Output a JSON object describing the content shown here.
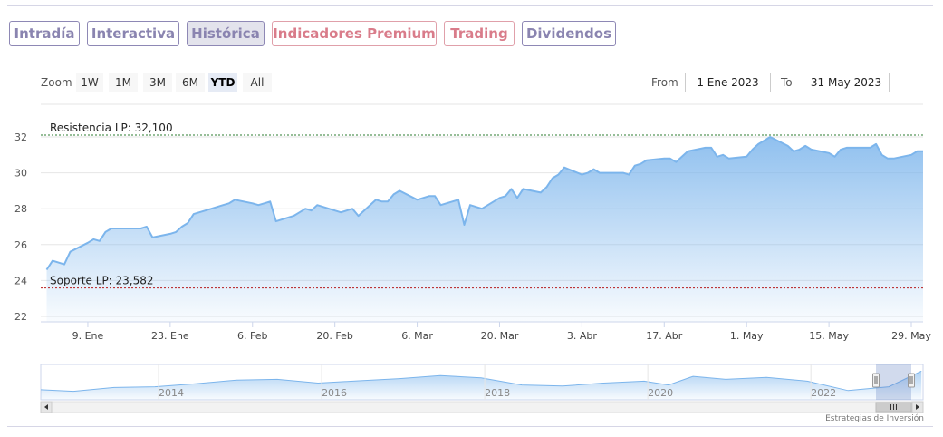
{
  "tabs": [
    {
      "label": "Intradía",
      "style": "purple",
      "active": false
    },
    {
      "label": "Interactiva",
      "style": "purple",
      "active": false
    },
    {
      "label": "Histórica",
      "style": "purple",
      "active": true
    },
    {
      "label": "Indicadores Premium",
      "style": "red",
      "active": false
    },
    {
      "label": "Trading",
      "style": "red",
      "active": false
    },
    {
      "label": "Dividendos",
      "style": "purple",
      "active": false
    }
  ],
  "zoom": {
    "label": "Zoom",
    "buttons": [
      "1W",
      "1M",
      "3M",
      "6M",
      "YTD",
      "All"
    ],
    "selected": "YTD"
  },
  "range": {
    "from_label": "From",
    "from_value": "1 Ene 2023",
    "to_label": "To",
    "to_value": "31 May 2023"
  },
  "credit": "Estrategias de Inversión",
  "colors": {
    "line": "#7cb5ec",
    "resistance": "#2e7d32",
    "support": "#b71c1c",
    "tab_purple": "#8a84b0",
    "tab_red": "#d97c8a"
  },
  "chart_data": {
    "type": "area",
    "title": "",
    "xlabel": "",
    "ylabel": "",
    "ylim": [
      22,
      32
    ],
    "yticks": [
      22,
      24,
      26,
      28,
      30,
      32
    ],
    "xticks": [
      {
        "date": "2023-01-09",
        "label": "9. Ene"
      },
      {
        "date": "2023-01-23",
        "label": "23. Ene"
      },
      {
        "date": "2023-02-06",
        "label": "6. Feb"
      },
      {
        "date": "2023-02-20",
        "label": "20. Feb"
      },
      {
        "date": "2023-03-06",
        "label": "6. Mar"
      },
      {
        "date": "2023-03-20",
        "label": "20. Mar"
      },
      {
        "date": "2023-04-03",
        "label": "3. Abr"
      },
      {
        "date": "2023-04-17",
        "label": "17. Abr"
      },
      {
        "date": "2023-05-01",
        "label": "1. May"
      },
      {
        "date": "2023-05-15",
        "label": "15. May"
      },
      {
        "date": "2023-05-29",
        "label": "29. May"
      }
    ],
    "grid": true,
    "series": [
      {
        "points": [
          [
            "2023-01-02",
            24.6
          ],
          [
            "2023-01-03",
            25.1
          ],
          [
            "2023-01-04",
            25.0
          ],
          [
            "2023-01-05",
            24.9
          ],
          [
            "2023-01-06",
            25.6
          ],
          [
            "2023-01-09",
            26.1
          ],
          [
            "2023-01-10",
            26.3
          ],
          [
            "2023-01-11",
            26.2
          ],
          [
            "2023-01-12",
            26.7
          ],
          [
            "2023-01-13",
            26.9
          ],
          [
            "2023-01-16",
            26.9
          ],
          [
            "2023-01-17",
            26.9
          ],
          [
            "2023-01-18",
            26.9
          ],
          [
            "2023-01-19",
            27.0
          ],
          [
            "2023-01-20",
            26.4
          ],
          [
            "2023-01-23",
            26.6
          ],
          [
            "2023-01-24",
            26.7
          ],
          [
            "2023-01-25",
            27.0
          ],
          [
            "2023-01-26",
            27.2
          ],
          [
            "2023-01-27",
            27.7
          ],
          [
            "2023-01-30",
            28.0
          ],
          [
            "2023-01-31",
            28.1
          ],
          [
            "2023-02-01",
            28.2
          ],
          [
            "2023-02-02",
            28.3
          ],
          [
            "2023-02-03",
            28.5
          ],
          [
            "2023-02-06",
            28.3
          ],
          [
            "2023-02-07",
            28.2
          ],
          [
            "2023-02-08",
            28.3
          ],
          [
            "2023-02-09",
            28.4
          ],
          [
            "2023-02-10",
            27.3
          ],
          [
            "2023-02-13",
            27.6
          ],
          [
            "2023-02-14",
            27.8
          ],
          [
            "2023-02-15",
            28.0
          ],
          [
            "2023-02-16",
            27.9
          ],
          [
            "2023-02-17",
            28.2
          ],
          [
            "2023-02-20",
            27.9
          ],
          [
            "2023-02-21",
            27.8
          ],
          [
            "2023-02-22",
            27.9
          ],
          [
            "2023-02-23",
            28.0
          ],
          [
            "2023-02-24",
            27.6
          ],
          [
            "2023-02-27",
            28.5
          ],
          [
            "2023-02-28",
            28.4
          ],
          [
            "2023-03-01",
            28.4
          ],
          [
            "2023-03-02",
            28.8
          ],
          [
            "2023-03-03",
            29.0
          ],
          [
            "2023-03-06",
            28.5
          ],
          [
            "2023-03-07",
            28.6
          ],
          [
            "2023-03-08",
            28.7
          ],
          [
            "2023-03-09",
            28.7
          ],
          [
            "2023-03-10",
            28.2
          ],
          [
            "2023-03-13",
            28.5
          ],
          [
            "2023-03-14",
            27.1
          ],
          [
            "2023-03-15",
            28.2
          ],
          [
            "2023-03-16",
            28.1
          ],
          [
            "2023-03-17",
            28.0
          ],
          [
            "2023-03-20",
            28.6
          ],
          [
            "2023-03-21",
            28.7
          ],
          [
            "2023-03-22",
            29.1
          ],
          [
            "2023-03-23",
            28.6
          ],
          [
            "2023-03-24",
            29.1
          ],
          [
            "2023-03-27",
            28.9
          ],
          [
            "2023-03-28",
            29.2
          ],
          [
            "2023-03-29",
            29.7
          ],
          [
            "2023-03-30",
            29.9
          ],
          [
            "2023-03-31",
            30.3
          ],
          [
            "2023-04-03",
            29.9
          ],
          [
            "2023-04-04",
            30.0
          ],
          [
            "2023-04-05",
            30.2
          ],
          [
            "2023-04-06",
            30.0
          ],
          [
            "2023-04-10",
            30.0
          ],
          [
            "2023-04-11",
            29.9
          ],
          [
            "2023-04-12",
            30.4
          ],
          [
            "2023-04-13",
            30.5
          ],
          [
            "2023-04-14",
            30.7
          ],
          [
            "2023-04-17",
            30.8
          ],
          [
            "2023-04-18",
            30.8
          ],
          [
            "2023-04-19",
            30.6
          ],
          [
            "2023-04-20",
            30.9
          ],
          [
            "2023-04-21",
            31.2
          ],
          [
            "2023-04-24",
            31.4
          ],
          [
            "2023-04-25",
            31.4
          ],
          [
            "2023-04-26",
            30.9
          ],
          [
            "2023-04-27",
            31.0
          ],
          [
            "2023-04-28",
            30.8
          ],
          [
            "2023-05-01",
            30.9
          ],
          [
            "2023-05-02",
            31.3
          ],
          [
            "2023-05-03",
            31.6
          ],
          [
            "2023-05-04",
            31.8
          ],
          [
            "2023-05-05",
            32.0
          ],
          [
            "2023-05-08",
            31.5
          ],
          [
            "2023-05-09",
            31.2
          ],
          [
            "2023-05-10",
            31.3
          ],
          [
            "2023-05-11",
            31.5
          ],
          [
            "2023-05-12",
            31.3
          ],
          [
            "2023-05-15",
            31.1
          ],
          [
            "2023-05-16",
            30.9
          ],
          [
            "2023-05-17",
            31.3
          ],
          [
            "2023-05-18",
            31.4
          ],
          [
            "2023-05-19",
            31.4
          ],
          [
            "2023-05-22",
            31.4
          ],
          [
            "2023-05-23",
            31.6
          ],
          [
            "2023-05-24",
            31.0
          ],
          [
            "2023-05-25",
            30.8
          ],
          [
            "2023-05-26",
            30.8
          ],
          [
            "2023-05-29",
            31.0
          ],
          [
            "2023-05-30",
            31.2
          ],
          [
            "2023-05-31",
            31.2
          ]
        ]
      }
    ],
    "plot_lines": [
      {
        "label": "Resistencia LP: 32,100",
        "value": 32.1,
        "color": "#2e7d32"
      },
      {
        "label": "Soporte LP: 23,582",
        "value": 23.582,
        "color": "#b71c1c"
      }
    ],
    "navigator": {
      "labels": [
        "2014",
        "2016",
        "2018",
        "2020",
        "2022"
      ],
      "values": [
        {
          "year": 2012.6,
          "value": 26.2
        },
        {
          "year": 2013.0,
          "value": 25.8
        },
        {
          "year": 2013.5,
          "value": 26.8
        },
        {
          "year": 2014.0,
          "value": 27.0
        },
        {
          "year": 2014.5,
          "value": 27.8
        },
        {
          "year": 2015.0,
          "value": 28.8
        },
        {
          "year": 2015.5,
          "value": 29.0
        },
        {
          "year": 2016.0,
          "value": 28.0
        },
        {
          "year": 2016.5,
          "value": 28.6
        },
        {
          "year": 2017.0,
          "value": 29.2
        },
        {
          "year": 2017.5,
          "value": 30.0
        },
        {
          "year": 2018.0,
          "value": 29.4
        },
        {
          "year": 2018.5,
          "value": 27.5
        },
        {
          "year": 2019.0,
          "value": 27.2
        },
        {
          "year": 2019.5,
          "value": 28.0
        },
        {
          "year": 2020.0,
          "value": 28.5
        },
        {
          "year": 2020.3,
          "value": 27.5
        },
        {
          "year": 2020.6,
          "value": 29.8
        },
        {
          "year": 2021.0,
          "value": 29.0
        },
        {
          "year": 2021.5,
          "value": 29.5
        },
        {
          "year": 2022.0,
          "value": 28.5
        },
        {
          "year": 2022.5,
          "value": 26.0
        },
        {
          "year": 2023.0,
          "value": 27.0
        },
        {
          "year": 2023.4,
          "value": 31.2
        }
      ]
    }
  }
}
